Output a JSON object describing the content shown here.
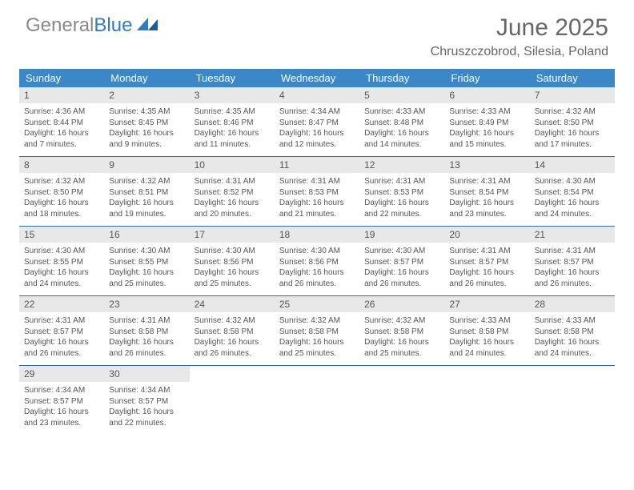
{
  "logo": {
    "word1": "General",
    "word2": "Blue"
  },
  "title": "June 2025",
  "subtitle": "Chruszczobrod, Silesia, Poland",
  "colors": {
    "header_bg": "#3b87c8",
    "header_text": "#ffffff",
    "daynum_bg": "#e8e8e8",
    "text": "#555555",
    "week_border": "#2c6aa0",
    "logo_gray": "#888888",
    "logo_blue": "#2f7bc4"
  },
  "weekdays": [
    "Sunday",
    "Monday",
    "Tuesday",
    "Wednesday",
    "Thursday",
    "Friday",
    "Saturday"
  ],
  "weeks": [
    [
      {
        "n": "1",
        "sr": "Sunrise: 4:36 AM",
        "ss": "Sunset: 8:44 PM",
        "d1": "Daylight: 16 hours",
        "d2": "and 7 minutes."
      },
      {
        "n": "2",
        "sr": "Sunrise: 4:35 AM",
        "ss": "Sunset: 8:45 PM",
        "d1": "Daylight: 16 hours",
        "d2": "and 9 minutes."
      },
      {
        "n": "3",
        "sr": "Sunrise: 4:35 AM",
        "ss": "Sunset: 8:46 PM",
        "d1": "Daylight: 16 hours",
        "d2": "and 11 minutes."
      },
      {
        "n": "4",
        "sr": "Sunrise: 4:34 AM",
        "ss": "Sunset: 8:47 PM",
        "d1": "Daylight: 16 hours",
        "d2": "and 12 minutes."
      },
      {
        "n": "5",
        "sr": "Sunrise: 4:33 AM",
        "ss": "Sunset: 8:48 PM",
        "d1": "Daylight: 16 hours",
        "d2": "and 14 minutes."
      },
      {
        "n": "6",
        "sr": "Sunrise: 4:33 AM",
        "ss": "Sunset: 8:49 PM",
        "d1": "Daylight: 16 hours",
        "d2": "and 15 minutes."
      },
      {
        "n": "7",
        "sr": "Sunrise: 4:32 AM",
        "ss": "Sunset: 8:50 PM",
        "d1": "Daylight: 16 hours",
        "d2": "and 17 minutes."
      }
    ],
    [
      {
        "n": "8",
        "sr": "Sunrise: 4:32 AM",
        "ss": "Sunset: 8:50 PM",
        "d1": "Daylight: 16 hours",
        "d2": "and 18 minutes."
      },
      {
        "n": "9",
        "sr": "Sunrise: 4:32 AM",
        "ss": "Sunset: 8:51 PM",
        "d1": "Daylight: 16 hours",
        "d2": "and 19 minutes."
      },
      {
        "n": "10",
        "sr": "Sunrise: 4:31 AM",
        "ss": "Sunset: 8:52 PM",
        "d1": "Daylight: 16 hours",
        "d2": "and 20 minutes."
      },
      {
        "n": "11",
        "sr": "Sunrise: 4:31 AM",
        "ss": "Sunset: 8:53 PM",
        "d1": "Daylight: 16 hours",
        "d2": "and 21 minutes."
      },
      {
        "n": "12",
        "sr": "Sunrise: 4:31 AM",
        "ss": "Sunset: 8:53 PM",
        "d1": "Daylight: 16 hours",
        "d2": "and 22 minutes."
      },
      {
        "n": "13",
        "sr": "Sunrise: 4:31 AM",
        "ss": "Sunset: 8:54 PM",
        "d1": "Daylight: 16 hours",
        "d2": "and 23 minutes."
      },
      {
        "n": "14",
        "sr": "Sunrise: 4:30 AM",
        "ss": "Sunset: 8:54 PM",
        "d1": "Daylight: 16 hours",
        "d2": "and 24 minutes."
      }
    ],
    [
      {
        "n": "15",
        "sr": "Sunrise: 4:30 AM",
        "ss": "Sunset: 8:55 PM",
        "d1": "Daylight: 16 hours",
        "d2": "and 24 minutes."
      },
      {
        "n": "16",
        "sr": "Sunrise: 4:30 AM",
        "ss": "Sunset: 8:55 PM",
        "d1": "Daylight: 16 hours",
        "d2": "and 25 minutes."
      },
      {
        "n": "17",
        "sr": "Sunrise: 4:30 AM",
        "ss": "Sunset: 8:56 PM",
        "d1": "Daylight: 16 hours",
        "d2": "and 25 minutes."
      },
      {
        "n": "18",
        "sr": "Sunrise: 4:30 AM",
        "ss": "Sunset: 8:56 PM",
        "d1": "Daylight: 16 hours",
        "d2": "and 26 minutes."
      },
      {
        "n": "19",
        "sr": "Sunrise: 4:30 AM",
        "ss": "Sunset: 8:57 PM",
        "d1": "Daylight: 16 hours",
        "d2": "and 26 minutes."
      },
      {
        "n": "20",
        "sr": "Sunrise: 4:31 AM",
        "ss": "Sunset: 8:57 PM",
        "d1": "Daylight: 16 hours",
        "d2": "and 26 minutes."
      },
      {
        "n": "21",
        "sr": "Sunrise: 4:31 AM",
        "ss": "Sunset: 8:57 PM",
        "d1": "Daylight: 16 hours",
        "d2": "and 26 minutes."
      }
    ],
    [
      {
        "n": "22",
        "sr": "Sunrise: 4:31 AM",
        "ss": "Sunset: 8:57 PM",
        "d1": "Daylight: 16 hours",
        "d2": "and 26 minutes."
      },
      {
        "n": "23",
        "sr": "Sunrise: 4:31 AM",
        "ss": "Sunset: 8:58 PM",
        "d1": "Daylight: 16 hours",
        "d2": "and 26 minutes."
      },
      {
        "n": "24",
        "sr": "Sunrise: 4:32 AM",
        "ss": "Sunset: 8:58 PM",
        "d1": "Daylight: 16 hours",
        "d2": "and 26 minutes."
      },
      {
        "n": "25",
        "sr": "Sunrise: 4:32 AM",
        "ss": "Sunset: 8:58 PM",
        "d1": "Daylight: 16 hours",
        "d2": "and 25 minutes."
      },
      {
        "n": "26",
        "sr": "Sunrise: 4:32 AM",
        "ss": "Sunset: 8:58 PM",
        "d1": "Daylight: 16 hours",
        "d2": "and 25 minutes."
      },
      {
        "n": "27",
        "sr": "Sunrise: 4:33 AM",
        "ss": "Sunset: 8:58 PM",
        "d1": "Daylight: 16 hours",
        "d2": "and 24 minutes."
      },
      {
        "n": "28",
        "sr": "Sunrise: 4:33 AM",
        "ss": "Sunset: 8:58 PM",
        "d1": "Daylight: 16 hours",
        "d2": "and 24 minutes."
      }
    ],
    [
      {
        "n": "29",
        "sr": "Sunrise: 4:34 AM",
        "ss": "Sunset: 8:57 PM",
        "d1": "Daylight: 16 hours",
        "d2": "and 23 minutes."
      },
      {
        "n": "30",
        "sr": "Sunrise: 4:34 AM",
        "ss": "Sunset: 8:57 PM",
        "d1": "Daylight: 16 hours",
        "d2": "and 22 minutes."
      },
      {
        "empty": true
      },
      {
        "empty": true
      },
      {
        "empty": true
      },
      {
        "empty": true
      },
      {
        "empty": true
      }
    ]
  ]
}
